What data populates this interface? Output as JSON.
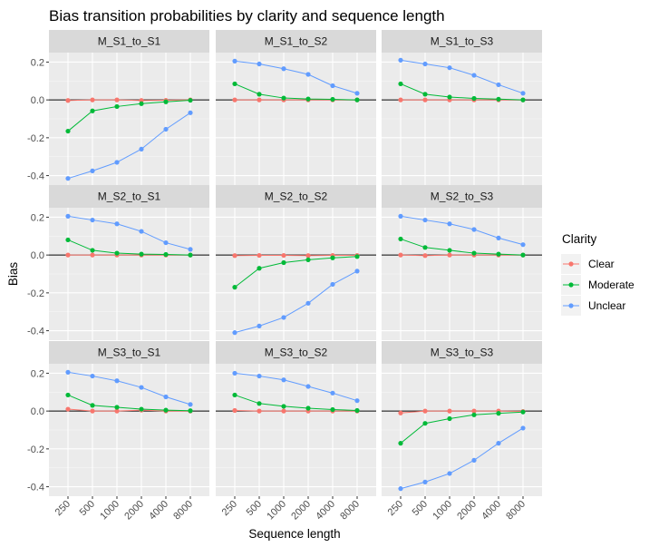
{
  "chart_data": {
    "type": "line",
    "title": "Bias transition probabilities by clarity and sequence length",
    "xlabel": "Sequence length",
    "ylabel": "Bias",
    "x": [
      250,
      500,
      1000,
      2000,
      4000,
      8000
    ],
    "x_tick_labels": [
      "250",
      "500",
      "1000",
      "2000",
      "4000",
      "8000"
    ],
    "ylim": [
      -0.45,
      0.25
    ],
    "y_ticks": [
      -0.4,
      -0.2,
      0.0,
      0.2
    ],
    "y_tick_labels": [
      "-0.4",
      "-0.2",
      "0.0",
      "0.2"
    ],
    "reference_line_y": 0,
    "legend": {
      "title": "Clarity",
      "position": "right",
      "entries": [
        {
          "name": "Clear",
          "color": "#F8766D"
        },
        {
          "name": "Moderate",
          "color": "#00BA38"
        },
        {
          "name": "Unclear",
          "color": "#619CFF"
        }
      ]
    },
    "panels": [
      {
        "label": "M_S1_to_S1",
        "series": [
          {
            "name": "Clear",
            "values": [
              -0.003,
              0.0,
              0.0,
              -0.003,
              -0.002,
              0.0
            ]
          },
          {
            "name": "Moderate",
            "values": [
              -0.165,
              -0.058,
              -0.035,
              -0.02,
              -0.01,
              -0.002
            ]
          },
          {
            "name": "Unclear",
            "values": [
              -0.415,
              -0.375,
              -0.33,
              -0.26,
              -0.155,
              -0.068
            ]
          }
        ]
      },
      {
        "label": "M_S1_to_S2",
        "series": [
          {
            "name": "Clear",
            "values": [
              0.0,
              0.0,
              0.0,
              0.0,
              0.0,
              0.0
            ]
          },
          {
            "name": "Moderate",
            "values": [
              0.085,
              0.03,
              0.01,
              0.005,
              0.003,
              0.0
            ]
          },
          {
            "name": "Unclear",
            "values": [
              0.205,
              0.19,
              0.165,
              0.135,
              0.075,
              0.035
            ]
          }
        ]
      },
      {
        "label": "M_S1_to_S3",
        "series": [
          {
            "name": "Clear",
            "values": [
              0.0,
              0.0,
              0.0,
              0.0,
              0.0,
              0.0
            ]
          },
          {
            "name": "Moderate",
            "values": [
              0.085,
              0.03,
              0.015,
              0.008,
              0.004,
              0.0
            ]
          },
          {
            "name": "Unclear",
            "values": [
              0.21,
              0.19,
              0.17,
              0.13,
              0.08,
              0.035
            ]
          }
        ]
      },
      {
        "label": "M_S2_to_S1",
        "series": [
          {
            "name": "Clear",
            "values": [
              0.0,
              0.0,
              0.0,
              0.0,
              0.0,
              0.0
            ]
          },
          {
            "name": "Moderate",
            "values": [
              0.08,
              0.025,
              0.01,
              0.005,
              0.003,
              0.0
            ]
          },
          {
            "name": "Unclear",
            "values": [
              0.205,
              0.185,
              0.165,
              0.125,
              0.065,
              0.03
            ]
          }
        ]
      },
      {
        "label": "M_S2_to_S2",
        "series": [
          {
            "name": "Clear",
            "values": [
              -0.003,
              -0.002,
              -0.002,
              -0.003,
              -0.002,
              -0.002
            ]
          },
          {
            "name": "Moderate",
            "values": [
              -0.17,
              -0.07,
              -0.04,
              -0.025,
              -0.015,
              -0.008
            ]
          },
          {
            "name": "Unclear",
            "values": [
              -0.41,
              -0.375,
              -0.33,
              -0.255,
              -0.155,
              -0.085
            ]
          }
        ]
      },
      {
        "label": "M_S2_to_S3",
        "series": [
          {
            "name": "Clear",
            "values": [
              0.0,
              -0.003,
              0.0,
              0.0,
              0.0,
              0.0
            ]
          },
          {
            "name": "Moderate",
            "values": [
              0.085,
              0.04,
              0.025,
              0.01,
              0.005,
              0.0
            ]
          },
          {
            "name": "Unclear",
            "values": [
              0.205,
              0.185,
              0.165,
              0.135,
              0.09,
              0.055
            ]
          }
        ]
      },
      {
        "label": "M_S3_to_S1",
        "series": [
          {
            "name": "Clear",
            "values": [
              0.01,
              0.0,
              0.0,
              0.005,
              0.0,
              0.0
            ]
          },
          {
            "name": "Moderate",
            "values": [
              0.085,
              0.03,
              0.02,
              0.01,
              0.005,
              0.002
            ]
          },
          {
            "name": "Unclear",
            "values": [
              0.205,
              0.185,
              0.16,
              0.125,
              0.075,
              0.035
            ]
          }
        ]
      },
      {
        "label": "M_S3_to_S2",
        "series": [
          {
            "name": "Clear",
            "values": [
              0.003,
              0.0,
              0.0,
              0.0,
              0.0,
              0.0
            ]
          },
          {
            "name": "Moderate",
            "values": [
              0.085,
              0.04,
              0.025,
              0.015,
              0.008,
              0.003
            ]
          },
          {
            "name": "Unclear",
            "values": [
              0.2,
              0.185,
              0.165,
              0.13,
              0.095,
              0.055
            ]
          }
        ]
      },
      {
        "label": "M_S3_to_S3",
        "series": [
          {
            "name": "Clear",
            "values": [
              -0.01,
              0.0,
              0.0,
              0.0,
              0.0,
              -0.002
            ]
          },
          {
            "name": "Moderate",
            "values": [
              -0.17,
              -0.065,
              -0.04,
              -0.02,
              -0.012,
              -0.005
            ]
          },
          {
            "name": "Unclear",
            "values": [
              -0.41,
              -0.375,
              -0.33,
              -0.26,
              -0.17,
              -0.09
            ]
          }
        ]
      }
    ]
  }
}
